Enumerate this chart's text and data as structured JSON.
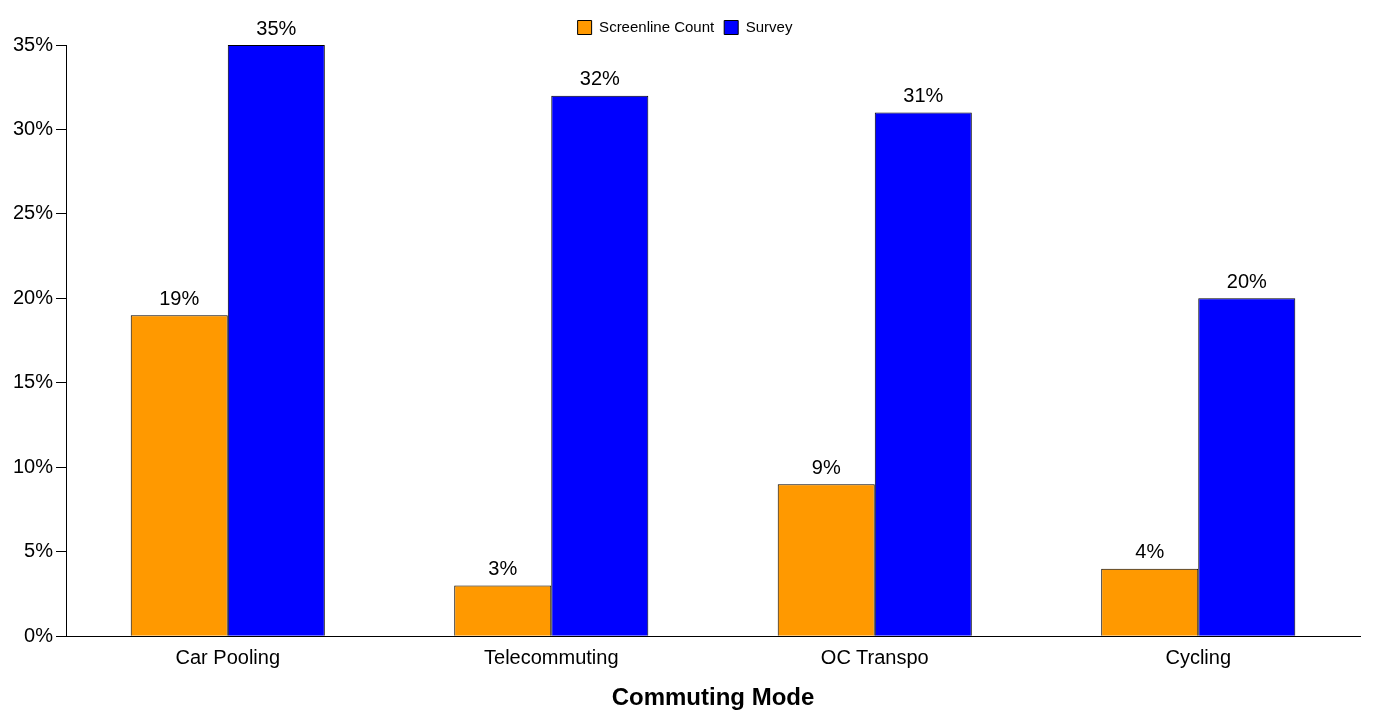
{
  "chart_data": {
    "type": "bar",
    "xlabel": "Commuting Mode",
    "categories": [
      "Car Pooling",
      "Telecommuting",
      "OC Transpo",
      "Cycling"
    ],
    "series": [
      {
        "name": "Screenline Count",
        "color": "#ff9900",
        "values": [
          19,
          3,
          9,
          4
        ],
        "value_labels": [
          "19%",
          "3%",
          "9%",
          "4%"
        ]
      },
      {
        "name": "Survey",
        "color": "#0000ff",
        "values": [
          35,
          32,
          31,
          20
        ],
        "value_labels": [
          "35%",
          "32%",
          "31%",
          "20%"
        ]
      }
    ],
    "ylim": [
      0,
      35
    ],
    "yticks": [
      {
        "value": 0,
        "label": "0%"
      },
      {
        "value": 5,
        "label": "5%"
      },
      {
        "value": 10,
        "label": "10%"
      },
      {
        "value": 15,
        "label": "15%"
      },
      {
        "value": 20,
        "label": "20%"
      },
      {
        "value": 25,
        "label": "25%"
      },
      {
        "value": 30,
        "label": "30%"
      },
      {
        "value": 35,
        "label": "35%"
      }
    ],
    "grid": false,
    "legend": "top"
  }
}
